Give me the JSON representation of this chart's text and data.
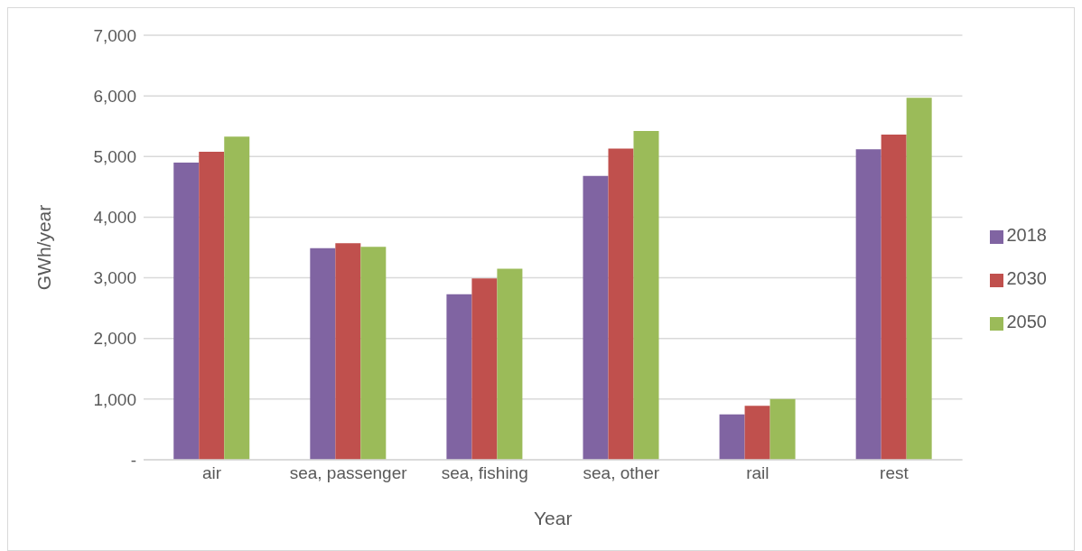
{
  "chart_data": {
    "type": "bar",
    "xlabel": "Year",
    "ylabel": "GWh/year",
    "categories": [
      "air",
      "sea, passenger",
      "sea, fishing",
      "sea, other",
      "rail",
      "rest"
    ],
    "series": [
      {
        "name": "2018",
        "color": "#8064a2",
        "values": [
          4900,
          3490,
          2730,
          4680,
          750,
          5120
        ]
      },
      {
        "name": "2030",
        "color": "#c0504d",
        "values": [
          5080,
          3570,
          2990,
          5130,
          890,
          5360
        ]
      },
      {
        "name": "2050",
        "color": "#9bbb59",
        "values": [
          5330,
          3510,
          3150,
          5420,
          1000,
          5970
        ]
      }
    ],
    "ylim": [
      0,
      7000
    ],
    "yticks": [
      {
        "value": 0,
        "label": "-"
      },
      {
        "value": 1000,
        "label": "1,000"
      },
      {
        "value": 2000,
        "label": "2,000"
      },
      {
        "value": 3000,
        "label": "3,000"
      },
      {
        "value": 4000,
        "label": "4,000"
      },
      {
        "value": 5000,
        "label": "5,000"
      },
      {
        "value": 6000,
        "label": "6,000"
      },
      {
        "value": 7000,
        "label": "7,000"
      }
    ],
    "grid": "y",
    "legend": "right"
  }
}
